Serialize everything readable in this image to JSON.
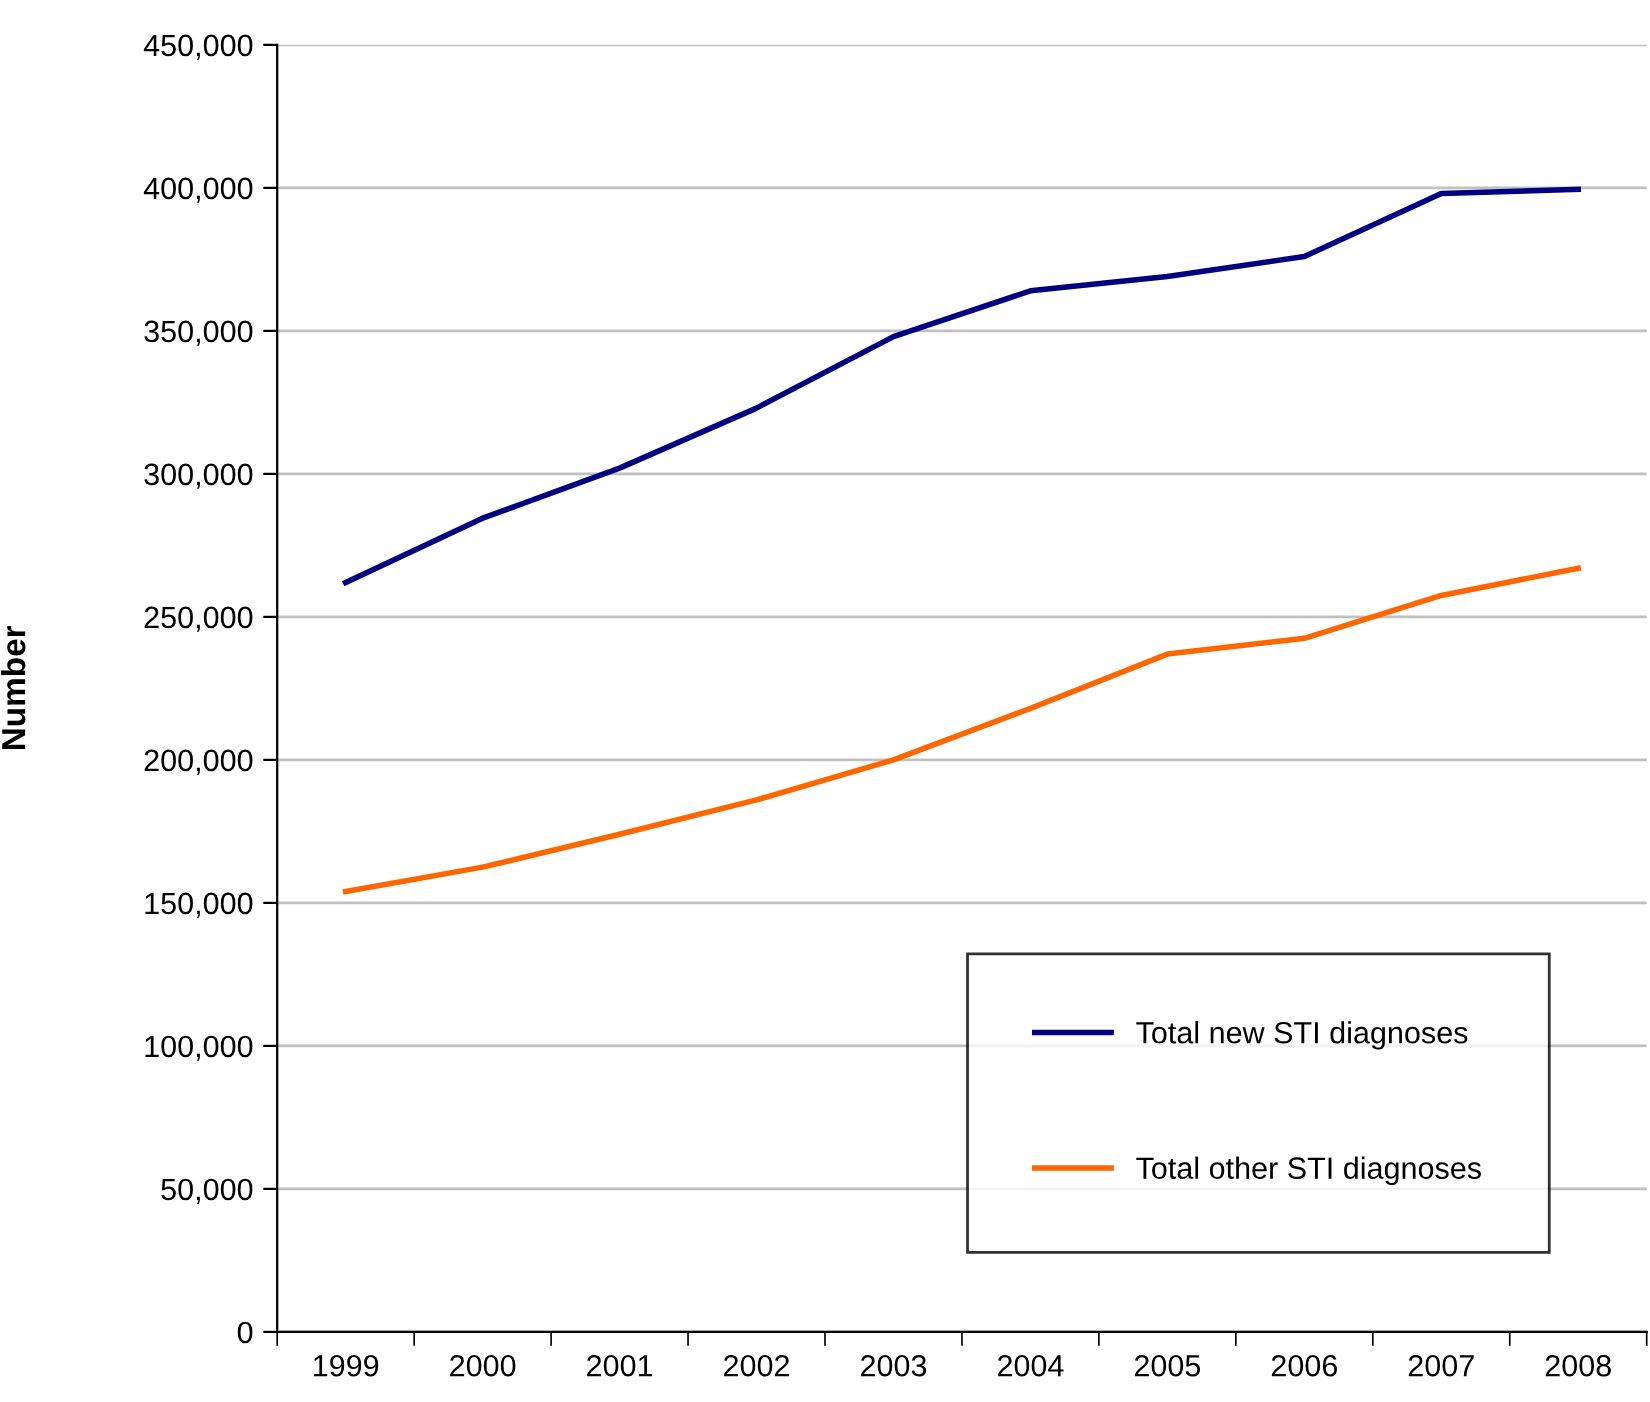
{
  "chart_data": {
    "type": "line",
    "ylabel": "Number",
    "categories": [
      "1999",
      "2000",
      "2001",
      "2002",
      "2003",
      "2004",
      "2005",
      "2006",
      "2007",
      "2008"
    ],
    "series": [
      {
        "name": "Total new STI diagnoses",
        "color": "#000080",
        "values": [
          262000,
          284500,
          302000,
          323000,
          348000,
          364000,
          369000,
          376000,
          398000,
          399500
        ]
      },
      {
        "name": "Total other STI diagnoses",
        "color": "#ff6600",
        "values": [
          154000,
          162500,
          174000,
          186000,
          200000,
          218000,
          237000,
          242500,
          257500,
          267000
        ]
      }
    ],
    "ylim": [
      0,
      450000
    ],
    "yticks": [
      {
        "value": 0,
        "label": "0"
      },
      {
        "value": 50000,
        "label": "50,000"
      },
      {
        "value": 100000,
        "label": "100,000"
      },
      {
        "value": 150000,
        "label": "150,000"
      },
      {
        "value": 200000,
        "label": "200,000"
      },
      {
        "value": 250000,
        "label": "250,000"
      },
      {
        "value": 300000,
        "label": "300,000"
      },
      {
        "value": 350000,
        "label": "350,000"
      },
      {
        "value": 400000,
        "label": "400,000"
      },
      {
        "value": 450000,
        "label": "450,000"
      }
    ],
    "grid": "y",
    "legend": "bottom right",
    "marker": "none",
    "line_style": "solid"
  }
}
